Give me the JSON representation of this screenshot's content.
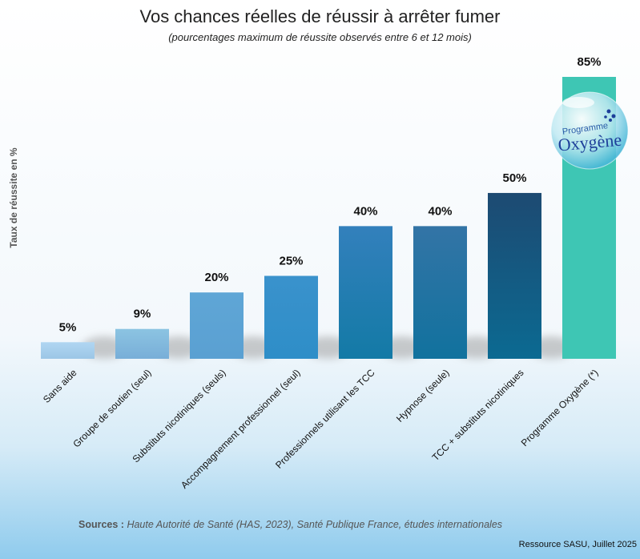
{
  "chart_data": {
    "type": "bar",
    "title": "Vos chances réelles de réussir à arrêter fumer",
    "subtitle": "(pourcentages maximum de réussite observés entre 6 et 12 mois)",
    "ylabel": "Taux de réussite en %",
    "ylim": [
      0,
      85
    ],
    "grid": false,
    "categories": [
      "Sans aide",
      "Groupe de soutien (seul)",
      "Substituts nicotiniques (seuls)",
      "Accompagnement professionnel (seul)",
      "Professionnels utilisant les TCC",
      "Hypnose (seule)",
      "TCC + substituts nicotiniques",
      "Programme Oxygène (*)"
    ],
    "values": [
      5,
      9,
      20,
      25,
      40,
      40,
      50,
      85
    ],
    "data_labels": [
      "5%",
      "9%",
      "20%",
      "25%",
      "40%",
      "40%",
      "50%",
      "85%"
    ],
    "colors": [
      [
        "#b0d6f2",
        "#9cc6e6"
      ],
      [
        "#8cc4e2",
        "#78aed8"
      ],
      [
        "#5fa6d6",
        "#5aa0d2"
      ],
      [
        "#3a92cc",
        "#2e8ec8"
      ],
      [
        "#3380bc",
        "#137aa6"
      ],
      [
        "#3374a6",
        "#11729e"
      ],
      [
        "#1d4a72",
        "#0b6a92"
      ],
      [
        "#3ec6b4",
        "#3ec6b4"
      ]
    ],
    "logo_text": [
      "Programme",
      "Oxygène"
    ]
  },
  "sources": {
    "label": "Sources :",
    "text": " Haute Autorité de Santé (HAS, 2023), Santé Publique France, études internationales"
  },
  "credit": "Ressource SASU, Juillet 2025"
}
